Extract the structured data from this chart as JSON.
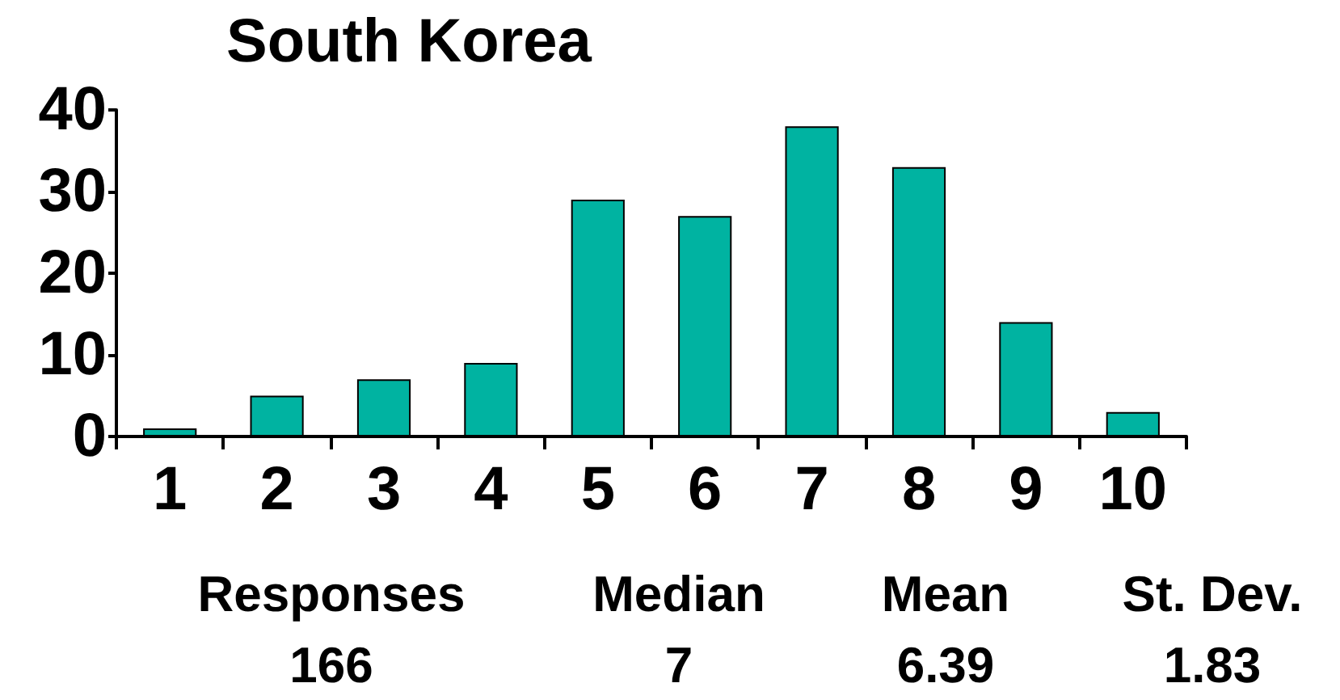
{
  "chart_data": {
    "type": "bar",
    "title": "South Korea",
    "categories": [
      "1",
      "2",
      "3",
      "4",
      "5",
      "6",
      "7",
      "8",
      "9",
      "10"
    ],
    "values": [
      1,
      5,
      7,
      9,
      29,
      27,
      38,
      33,
      14,
      3
    ],
    "color": "#00b3a1",
    "ylim": [
      0,
      40
    ],
    "yticks": [
      0,
      10,
      20,
      30,
      40
    ],
    "grid": false,
    "annotations": [
      "Responses",
      "Median",
      "Mean",
      "St. Dev.",
      "166",
      "7",
      "6.39",
      "1.83"
    ]
  }
}
